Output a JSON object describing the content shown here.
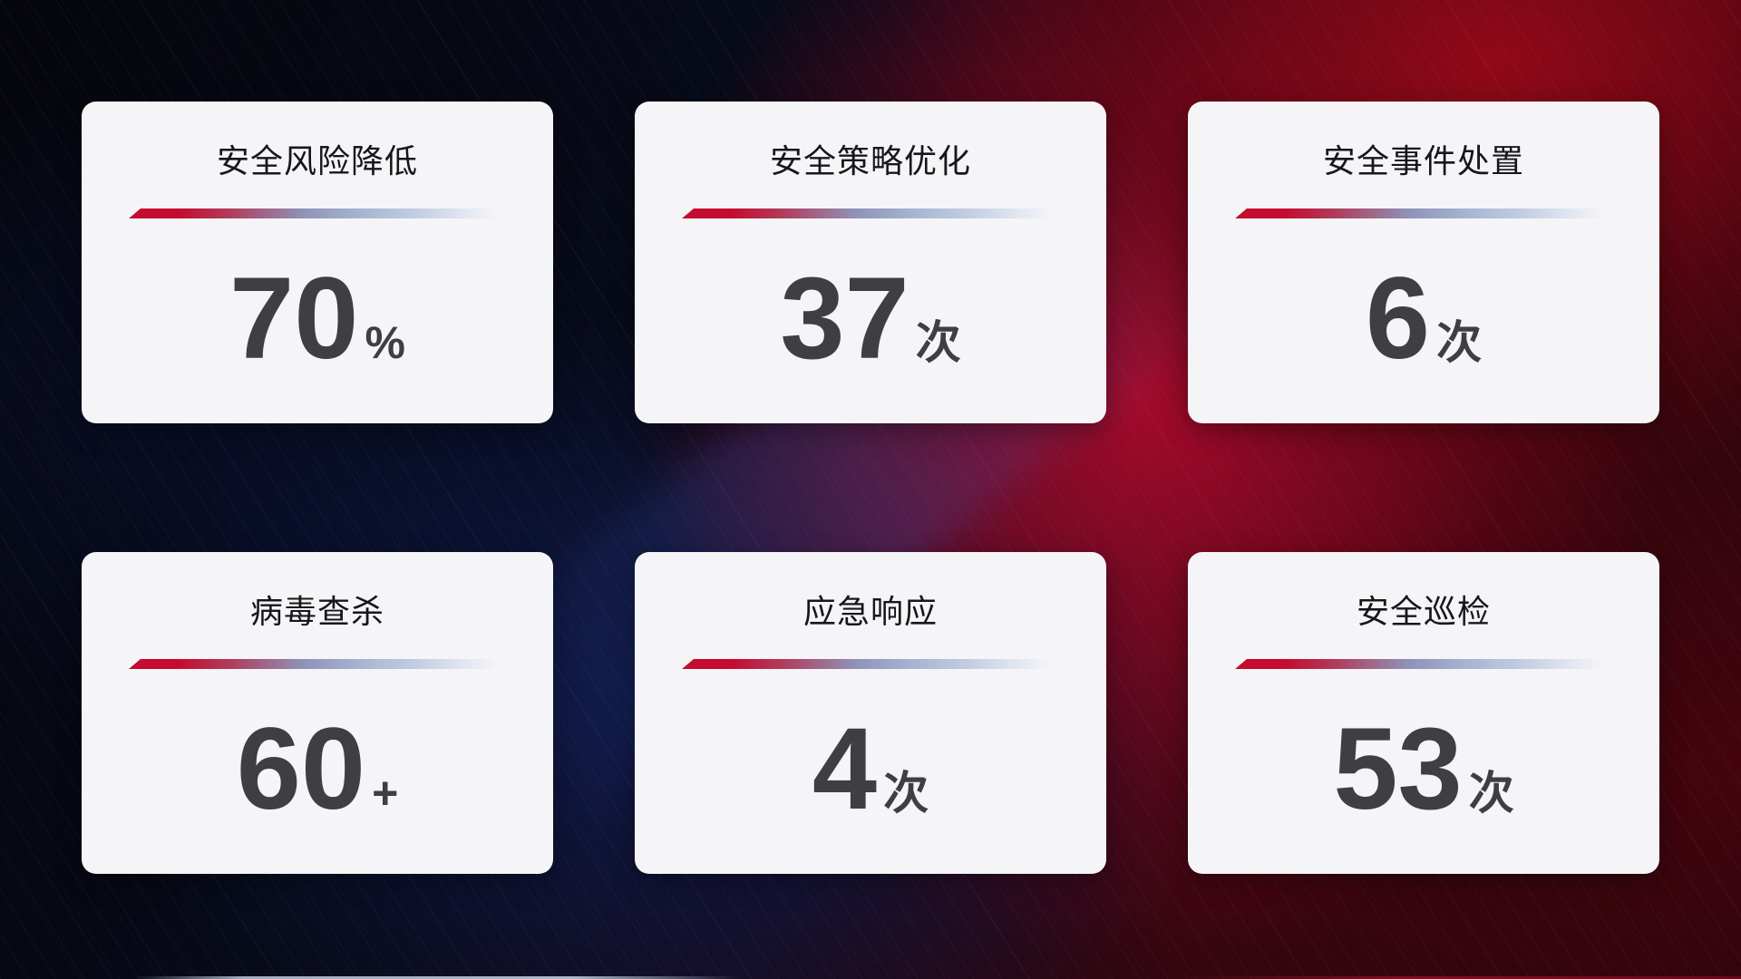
{
  "cards": [
    {
      "title": "安全风险降低",
      "value": "70",
      "unit": "%"
    },
    {
      "title": "安全策略优化",
      "value": "37",
      "unit": "次"
    },
    {
      "title": "安全事件处置",
      "value": "6",
      "unit": "次"
    },
    {
      "title": "病毒查杀",
      "value": "60",
      "unit": "+"
    },
    {
      "title": "应急响应",
      "value": "4",
      "unit": "次"
    },
    {
      "title": "安全巡检",
      "value": "53",
      "unit": "次"
    }
  ],
  "colors": {
    "card_background": "#f5f5f8",
    "title_text": "#17171a",
    "value_text": "#3e3e43",
    "divider_red": "#c50b2f",
    "divider_mid": "#8f92b8",
    "divider_light": "#dfe5f0",
    "background_base": "#06070f",
    "background_red": "#8c0820",
    "background_blue": "#0d1a45"
  }
}
